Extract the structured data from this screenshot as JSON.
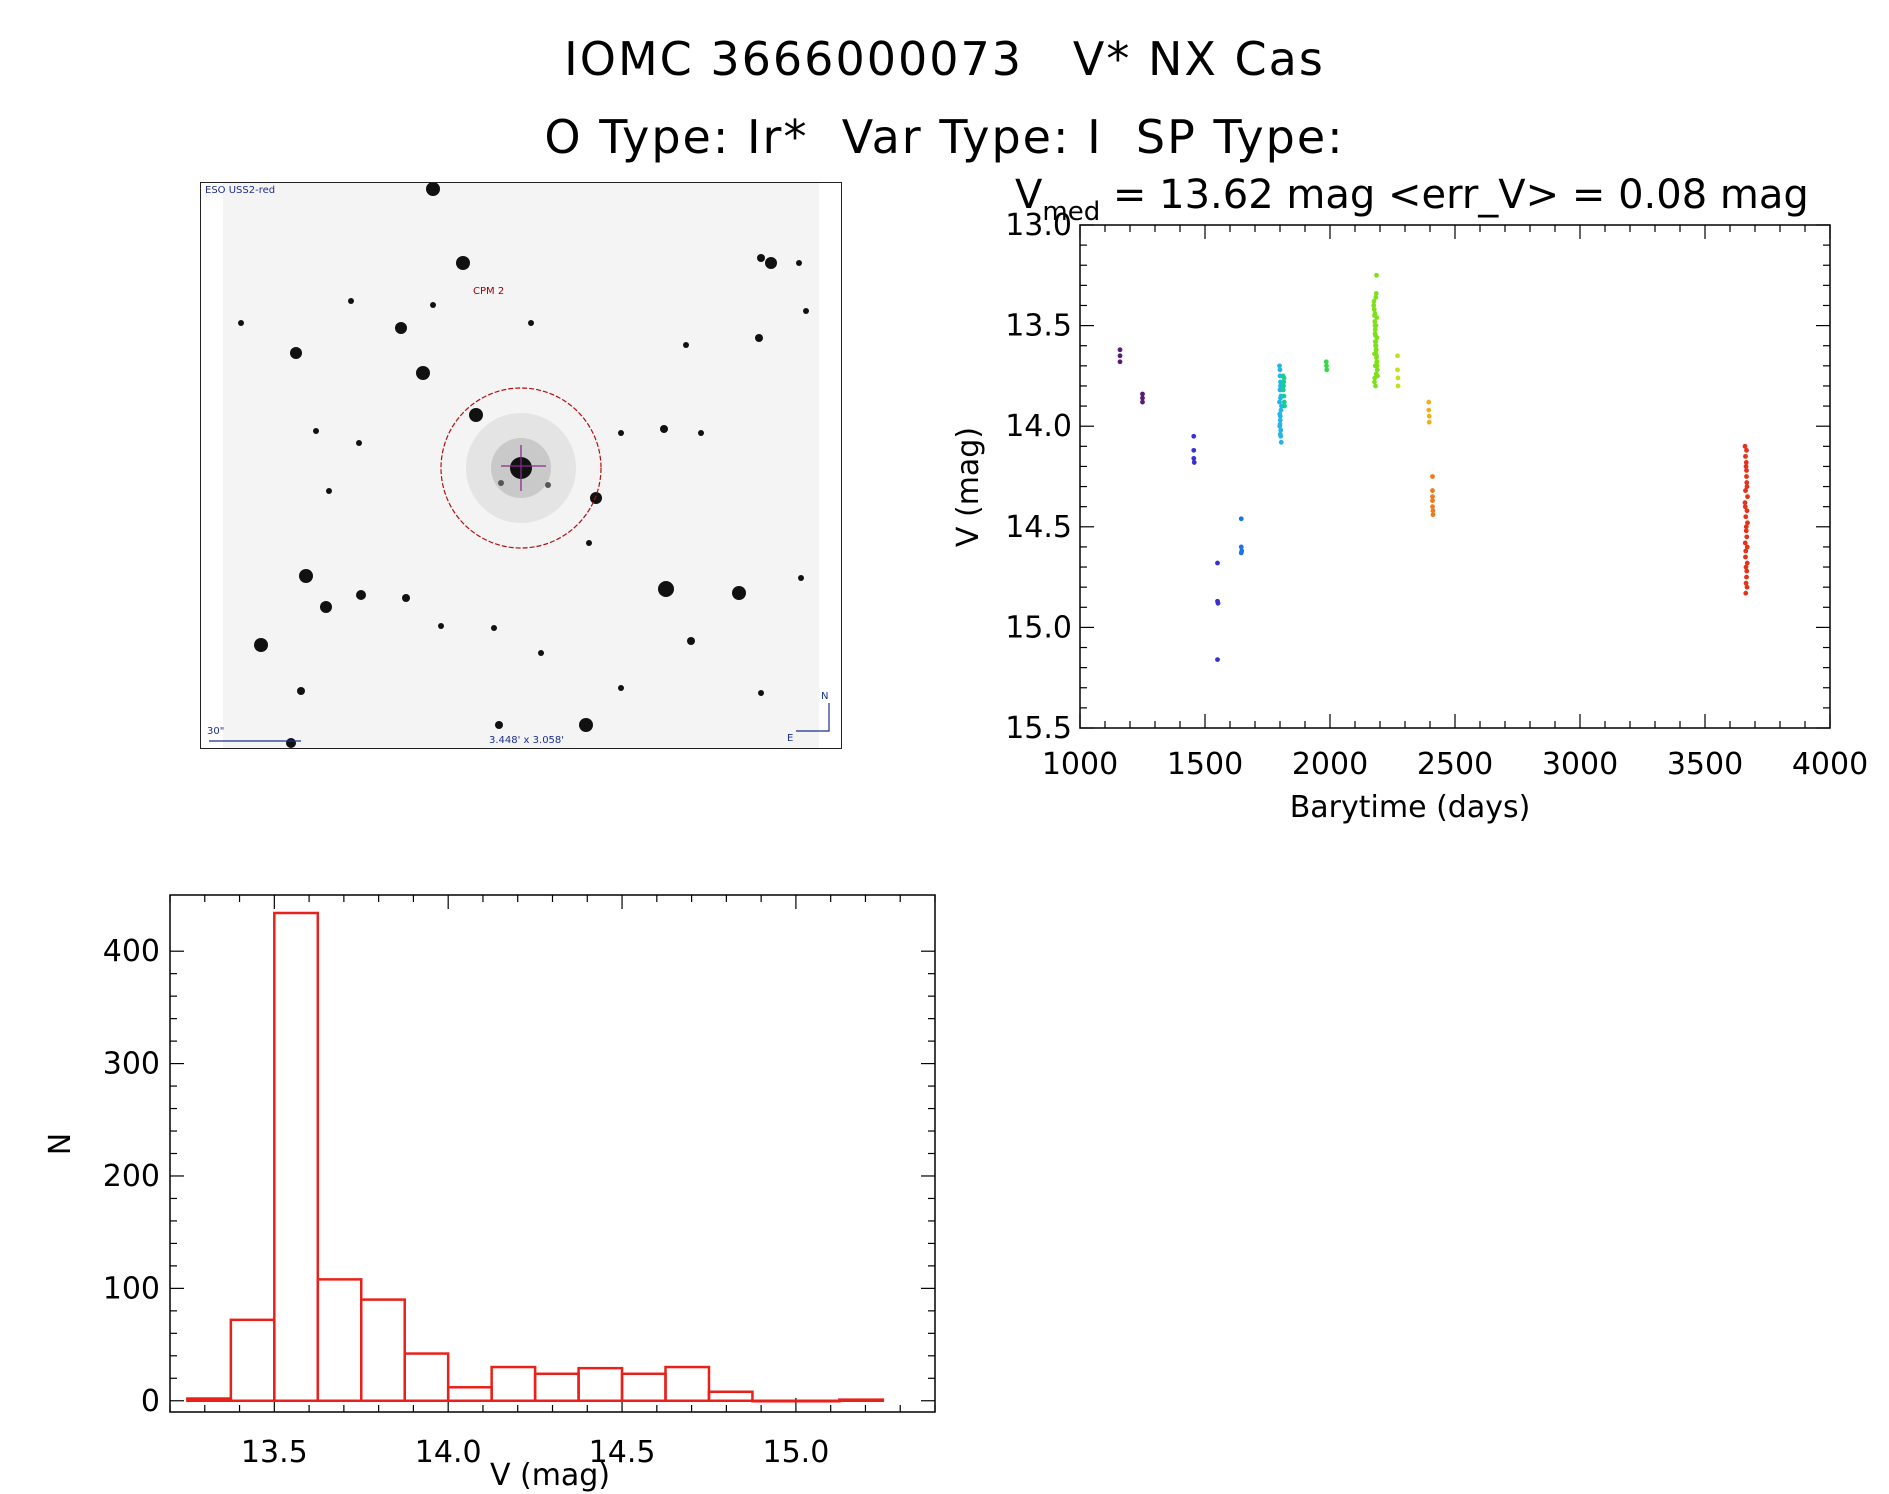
{
  "title": {
    "line1": "IOMC 3666000073   V* NX Cas",
    "line2": "O Type: Ir*  Var Type: I  SP Type:"
  },
  "stamp": {
    "survey_label": "ESO USS2-red",
    "object_label": "CPM 2",
    "scale_label": "30\"",
    "fov_label": "3.448' x 3.058'",
    "north_label": "N",
    "east_label": "E"
  },
  "chart_data": [
    {
      "type": "scatter",
      "title_prefix": "V",
      "title_subscript": "med",
      "title_rest": " = 13.62 mag <err_V> = 0.08 mag",
      "xlabel": "Barytime (days)",
      "ylabel": "V (mag)",
      "xlim": [
        1000,
        4000
      ],
      "ylim": [
        15.5,
        13.0
      ],
      "y_inverted": true,
      "xticks": [
        "1000",
        "1500",
        "2000",
        "2500",
        "3000",
        "3500",
        "4000"
      ],
      "yticks": [
        "13.0",
        "13.5",
        "14.0",
        "14.5",
        "15.0",
        "15.5"
      ],
      "series": [
        {
          "name": "g1",
          "color": "#5a1a7a",
          "x": [
            1160,
            1160,
            1160,
            1250,
            1250,
            1250
          ],
          "y": [
            13.62,
            13.65,
            13.68,
            13.84,
            13.86,
            13.88
          ]
        },
        {
          "name": "g2",
          "color": "#3a2fd0",
          "x": [
            1455,
            1455,
            1455,
            1457,
            1550,
            1550,
            1550,
            1552
          ],
          "y": [
            14.05,
            14.12,
            14.16,
            14.18,
            14.68,
            14.87,
            15.16,
            14.88
          ]
        },
        {
          "name": "g3",
          "color": "#1a73e8",
          "x": [
            1645,
            1645,
            1645,
            1647
          ],
          "y": [
            14.46,
            14.6,
            14.63,
            14.62
          ]
        },
        {
          "name": "g4",
          "color": "#23b4ea",
          "x": [
            1798,
            1800,
            1802,
            1804,
            1806,
            1801,
            1799,
            1803,
            1805,
            1800,
            1802,
            1798,
            1804,
            1801,
            1803,
            1800,
            1802,
            1799,
            1801,
            1800
          ],
          "y": [
            13.7,
            13.75,
            13.8,
            13.85,
            13.9,
            13.95,
            14.0,
            14.05,
            14.08,
            13.82,
            13.78,
            13.88,
            13.92,
            13.97,
            14.02,
            13.72,
            13.86,
            13.94,
            14.04,
            13.99
          ]
        },
        {
          "name": "g5",
          "color": "#14d08a",
          "x": [
            1812,
            1814,
            1816,
            1818,
            1815,
            1813,
            1817,
            1816
          ],
          "y": [
            13.75,
            13.8,
            13.85,
            13.9,
            13.78,
            13.82,
            13.88,
            13.76
          ]
        },
        {
          "name": "g6",
          "color": "#3ad64a",
          "x": [
            1985,
            1986,
            1987
          ],
          "y": [
            13.68,
            13.7,
            13.72
          ]
        },
        {
          "name": "g7",
          "color": "#7ee01a",
          "x": [
            2175,
            2178,
            2180,
            2182,
            2184,
            2186,
            2188,
            2190,
            2177,
            2179,
            2181,
            2183,
            2185,
            2187,
            2189,
            2176,
            2180,
            2184,
            2188,
            2182,
            2178,
            2186,
            2181,
            2185,
            2179,
            2183,
            2187,
            2180,
            2184,
            2188,
            2182,
            2186,
            2178,
            2185,
            2181,
            2183
          ],
          "y": [
            13.4,
            13.45,
            13.5,
            13.55,
            13.6,
            13.65,
            13.7,
            13.75,
            13.42,
            13.48,
            13.52,
            13.58,
            13.62,
            13.68,
            13.72,
            13.38,
            13.44,
            13.5,
            13.56,
            13.6,
            13.64,
            13.66,
            13.7,
            13.74,
            13.76,
            13.36,
            13.46,
            13.54,
            13.62,
            13.68,
            13.8,
            13.25,
            13.78,
            13.34,
            13.58,
            13.64
          ]
        },
        {
          "name": "g8",
          "color": "#c8e01a",
          "x": [
            2270,
            2270,
            2272,
            2272
          ],
          "y": [
            13.65,
            13.72,
            13.76,
            13.8
          ]
        },
        {
          "name": "g9",
          "color": "#f0b01a",
          "x": [
            2395,
            2395,
            2397,
            2397
          ],
          "y": [
            13.88,
            13.92,
            13.95,
            13.98
          ]
        },
        {
          "name": "g10",
          "color": "#f07a1a",
          "x": [
            2410,
            2410,
            2410,
            2410,
            2410,
            2412,
            2412
          ],
          "y": [
            14.25,
            14.32,
            14.35,
            14.37,
            14.4,
            14.42,
            14.44
          ]
        },
        {
          "name": "g11",
          "color": "#e6321a",
          "x": [
            3660,
            3662,
            3664,
            3666,
            3668,
            3670,
            3661,
            3663,
            3665,
            3667,
            3669,
            3662,
            3664,
            3666,
            3668,
            3663,
            3665,
            3667,
            3660,
            3670,
            3661,
            3669,
            3664,
            3666,
            3662,
            3668,
            3665,
            3663,
            3667,
            3666
          ],
          "y": [
            14.1,
            14.15,
            14.2,
            14.25,
            14.3,
            14.35,
            14.4,
            14.45,
            14.5,
            14.55,
            14.6,
            14.65,
            14.7,
            14.75,
            14.8,
            14.83,
            14.18,
            14.28,
            14.38,
            14.48,
            14.58,
            14.68,
            14.78,
            14.22,
            14.32,
            14.42,
            14.52,
            14.62,
            14.72,
            14.12
          ]
        }
      ]
    },
    {
      "type": "bar",
      "xlabel": "V (mag)",
      "ylabel": "N",
      "xlim": [
        13.2,
        15.4
      ],
      "ylim": [
        -10,
        450
      ],
      "xticks": [
        "13.5",
        "14.0",
        "14.5",
        "15.0"
      ],
      "yticks": [
        "0",
        "100",
        "200",
        "300",
        "400"
      ],
      "bin_width": 0.125,
      "bin_edges_start": 13.25,
      "values": [
        2,
        72,
        434,
        108,
        90,
        42,
        12,
        30,
        24,
        29,
        24,
        30,
        8,
        0,
        0,
        1
      ],
      "color": "#e8221a"
    }
  ]
}
